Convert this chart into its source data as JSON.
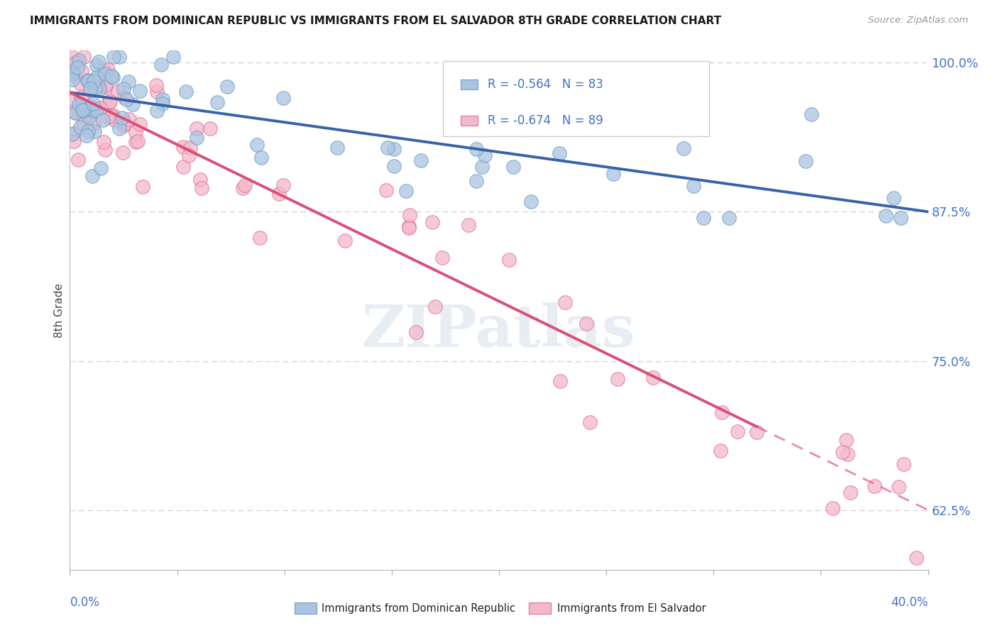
{
  "title": "IMMIGRANTS FROM DOMINICAN REPUBLIC VS IMMIGRANTS FROM EL SALVADOR 8TH GRADE CORRELATION CHART",
  "source": "Source: ZipAtlas.com",
  "ylabel": "8th Grade",
  "right_ytick_values": [
    0.625,
    0.75,
    0.875,
    1.0
  ],
  "right_ytick_labels": [
    "62.5%",
    "75.0%",
    "87.5%",
    "100.0%"
  ],
  "watermark": "ZIPatlas",
  "legend_label1": "R = -0.564   N = 83",
  "legend_label2": "R = -0.674   N = 89",
  "series1_color": "#aac4e0",
  "series1_edge": "#6b9fc8",
  "series1_line": "#3a62a7",
  "series2_color": "#f4b8cb",
  "series2_edge": "#e07090",
  "series2_line": "#d94f76",
  "title_color": "#1a1a1a",
  "axis_label_color": "#4472c4",
  "background_color": "#ffffff",
  "grid_color": "#d0d0d0",
  "xmin": 0.0,
  "xmax": 0.4,
  "ymin": 0.575,
  "ymax": 1.01,
  "series1_intercept": 0.975,
  "series1_slope": -0.25,
  "series2_intercept": 0.975,
  "series2_slope": -0.875
}
